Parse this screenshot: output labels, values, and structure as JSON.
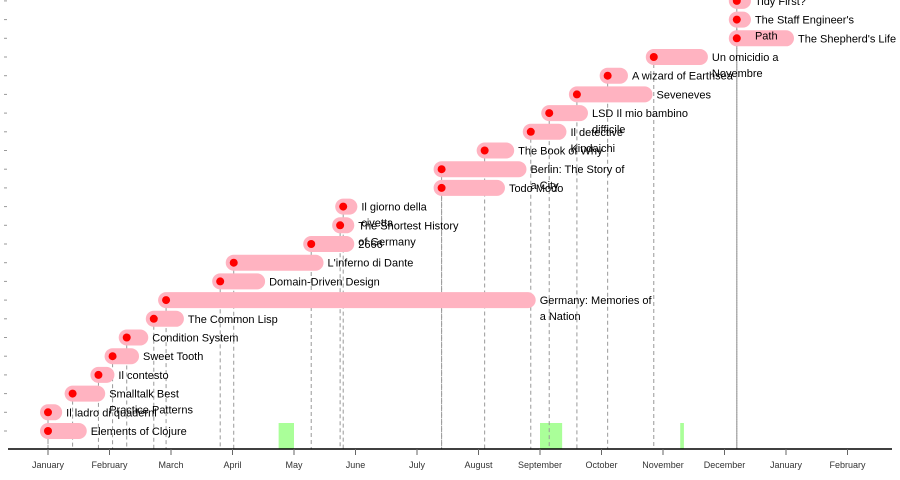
{
  "chart_data": {
    "type": "timeline",
    "title": "",
    "xlabel": "",
    "ylabel": "",
    "x_axis": {
      "ticks": [
        "January",
        "February",
        "March",
        "April",
        "May",
        "June",
        "July",
        "August",
        "September",
        "October",
        "November",
        "December",
        "January",
        "February"
      ]
    },
    "bar_color": "#ffb3c1",
    "dot_color": "#ff0000",
    "highlight_color": "#aaff99",
    "axis_color": "#000000",
    "guide_color": "#999999",
    "highlights": [
      {
        "start": 3.75,
        "end": 4.0
      },
      {
        "start": 8.0,
        "end": 8.36
      },
      {
        "start": 10.28,
        "end": 10.34
      }
    ],
    "books": [
      {
        "title": "Elements of Clojure",
        "start": 0.0,
        "end": 0.5,
        "label_lines": [
          "Elements of Clojure"
        ]
      },
      {
        "title": "Il ladro di quaderni",
        "start": 0.0,
        "end": 0.1,
        "label_lines": [
          "Il ladro di quaderni"
        ]
      },
      {
        "title": "Smalltalk Best Practice Patterns",
        "start": 0.4,
        "end": 0.8,
        "label_lines": [
          "Smalltalk Best",
          "Practice Patterns"
        ]
      },
      {
        "title": "Il contesto",
        "start": 0.82,
        "end": 0.95,
        "label_lines": [
          "Il contesto"
        ]
      },
      {
        "title": "Sweet Tooth",
        "start": 1.05,
        "end": 1.35,
        "label_lines": [
          "Sweet Tooth"
        ]
      },
      {
        "title": "Condition System",
        "start": 1.28,
        "end": 1.5,
        "label_lines": [
          "Condition System"
        ]
      },
      {
        "title": "The Common Lisp",
        "start": 1.72,
        "end": 2.08,
        "label_lines": [
          "The Common Lisp"
        ]
      },
      {
        "title": "Germany: Memories of a Nation",
        "start": 1.92,
        "end": 7.8,
        "label_lines": [
          "Germany: Memories of",
          "a Nation"
        ]
      },
      {
        "title": "Domain-Driven Design",
        "start": 2.8,
        "end": 3.4,
        "label_lines": [
          "Domain-Driven Design"
        ]
      },
      {
        "title": "L'inferno di Dante",
        "start": 3.02,
        "end": 4.35,
        "label_lines": [
          "L'inferno di Dante"
        ]
      },
      {
        "title": "2666",
        "start": 4.28,
        "end": 4.85,
        "label_lines": [
          "2666"
        ]
      },
      {
        "title": "The Shortest History of Germany",
        "start": 4.75,
        "end": 4.85,
        "label_lines": [
          "The Shortest History",
          "of Germany"
        ]
      },
      {
        "title": "Il giorno della civetta",
        "start": 4.8,
        "end": 4.9,
        "label_lines": [
          "Il giorno della",
          "civetta"
        ]
      },
      {
        "title": "Todo Modo",
        "start": 6.4,
        "end": 7.3,
        "label_lines": [
          "Todo Modo"
        ]
      },
      {
        "title": "Berlin: The Story of a City",
        "start": 6.4,
        "end": 7.65,
        "label_lines": [
          "Berlin: The Story of",
          "a City"
        ]
      },
      {
        "title": "The Book of Why",
        "start": 7.1,
        "end": 7.45,
        "label_lines": [
          "The Book of Why"
        ]
      },
      {
        "title": "Il detective Kindaichi",
        "start": 7.85,
        "end": 8.3,
        "label_lines": [
          "Il detective",
          "Kindaichi"
        ]
      },
      {
        "title": "LSD Il mio bambino difficile",
        "start": 8.15,
        "end": 8.65,
        "label_lines": [
          "LSD Il mio bambino",
          "difficile"
        ]
      },
      {
        "title": "Seveneves",
        "start": 8.6,
        "end": 9.7,
        "label_lines": [
          "Seveneves"
        ]
      },
      {
        "title": "A wizard of Earthsea",
        "start": 9.1,
        "end": 9.3,
        "label_lines": [
          "A wizard of Earthsea"
        ]
      },
      {
        "title": "Un omicidio a Novembre",
        "start": 9.85,
        "end": 10.6,
        "label_lines": [
          "Un omicidio a",
          "Novembre"
        ]
      },
      {
        "title": "The Shepherd's Life",
        "start": 11.2,
        "end": 12.0,
        "label_lines": [
          "The Shepherd's Life"
        ]
      },
      {
        "title": "The Staff Engineer's Path",
        "start": 11.2,
        "end": 11.3,
        "label_lines": [
          "The Staff Engineer's",
          "Path"
        ]
      },
      {
        "title": "Tidy First?",
        "start": 11.2,
        "end": 11.3,
        "label_lines": [
          "Tidy First?"
        ]
      }
    ]
  }
}
